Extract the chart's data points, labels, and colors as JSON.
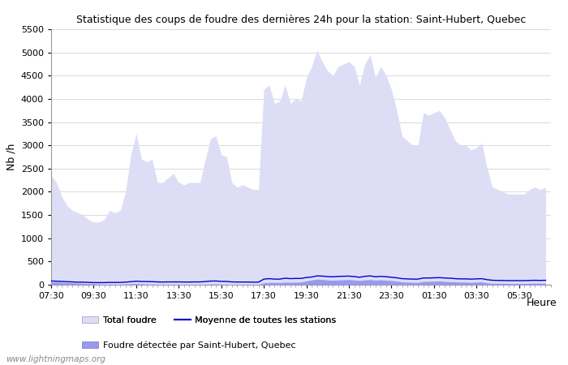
{
  "title": "Statistique des coups de foudre des dernières 24h pour la station: Saint-Hubert, Quebec",
  "ylabel": "Nb /h",
  "xlabel": "Heure",
  "watermark": "www.lightningmaps.org",
  "ylim": [
    0,
    5500
  ],
  "yticks": [
    0,
    500,
    1000,
    1500,
    2000,
    2500,
    3000,
    3500,
    4000,
    4500,
    5000,
    5500
  ],
  "xtick_labels": [
    "07:30",
    "09:30",
    "11:30",
    "13:30",
    "15:30",
    "17:30",
    "19:30",
    "21:30",
    "23:30",
    "01:30",
    "03:30",
    "05:30"
  ],
  "total_foudre_color": "#ddddf5",
  "total_foudre_edge": "#ddddf5",
  "local_foudre_color": "#9999ee",
  "local_foudre_edge": "#9999ee",
  "moyenne_color": "#0000cc",
  "background_color": "#ffffff",
  "grid_color": "#dddddd",
  "legend_labels": [
    "Total foudre",
    "Moyenne de toutes les stations",
    "Foudre détectée par Saint-Hubert, Quebec"
  ],
  "time_points": [
    0,
    0.25,
    0.5,
    0.75,
    1.0,
    1.25,
    1.5,
    1.75,
    2.0,
    2.25,
    2.5,
    2.75,
    3.0,
    3.25,
    3.5,
    3.75,
    4.0,
    4.25,
    4.5,
    4.75,
    5.0,
    5.25,
    5.5,
    5.75,
    6.0,
    6.25,
    6.5,
    6.75,
    7.0,
    7.25,
    7.5,
    7.75,
    8.0,
    8.25,
    8.5,
    8.75,
    9.0,
    9.25,
    9.5,
    9.75,
    10.0,
    10.25,
    10.5,
    10.75,
    11.0,
    11.25,
    11.5,
    11.75,
    12.0,
    12.25,
    12.5,
    12.75,
    13.0,
    13.25,
    13.5,
    13.75,
    14.0,
    14.25,
    14.5,
    14.75,
    15.0,
    15.25,
    15.5,
    15.75,
    16.0,
    16.25,
    16.5,
    16.75,
    17.0,
    17.25,
    17.5,
    17.75,
    18.0,
    18.25,
    18.5,
    18.75,
    19.0,
    19.25,
    19.5,
    19.75,
    20.0,
    20.25,
    20.5,
    20.75,
    21.0,
    21.25,
    21.5,
    21.75,
    22.0,
    22.25,
    22.5,
    22.75,
    23.0,
    23.25
  ],
  "total_foudre_values": [
    2350,
    2200,
    1900,
    1700,
    1600,
    1550,
    1500,
    1400,
    1350,
    1350,
    1400,
    1600,
    1550,
    1600,
    2000,
    2800,
    3250,
    2700,
    2650,
    2700,
    2200,
    2200,
    2300,
    2400,
    2200,
    2150,
    2200,
    2200,
    2200,
    2700,
    3150,
    3200,
    2800,
    2750,
    2200,
    2100,
    2150,
    2100,
    2050,
    2050,
    4200,
    4300,
    3900,
    3950,
    4300,
    3900,
    4000,
    3950,
    4450,
    4700,
    5050,
    4800,
    4600,
    4500,
    4700,
    4750,
    4800,
    4700,
    4300,
    4750,
    4950,
    4450,
    4700,
    4500,
    4200,
    3750,
    3200,
    3100,
    3000,
    3000,
    3700,
    3650,
    3700,
    3750,
    3600,
    3350,
    3100,
    3000,
    3000,
    2900,
    2950,
    3050,
    2500,
    2100,
    2050,
    2000,
    1950,
    1950,
    1950,
    1950,
    2050,
    2100,
    2050,
    2100
  ],
  "local_foudre_values": [
    60,
    55,
    50,
    45,
    40,
    35,
    30,
    25,
    20,
    15,
    10,
    15,
    10,
    12,
    15,
    20,
    25,
    20,
    15,
    12,
    10,
    8,
    8,
    10,
    10,
    8,
    8,
    8,
    10,
    10,
    15,
    15,
    10,
    10,
    8,
    8,
    8,
    8,
    8,
    8,
    40,
    45,
    50,
    45,
    55,
    50,
    55,
    55,
    80,
    100,
    120,
    110,
    100,
    95,
    100,
    105,
    110,
    100,
    90,
    100,
    110,
    95,
    105,
    95,
    90,
    75,
    60,
    55,
    50,
    50,
    70,
    70,
    75,
    80,
    70,
    65,
    60,
    55,
    55,
    50,
    55,
    60,
    40,
    30,
    30,
    28,
    25,
    25,
    25,
    25,
    30,
    32,
    30,
    32
  ],
  "moyenne_values": [
    80,
    75,
    70,
    65,
    60,
    55,
    55,
    50,
    45,
    45,
    45,
    50,
    48,
    50,
    55,
    65,
    75,
    70,
    68,
    65,
    60,
    58,
    60,
    60,
    60,
    58,
    58,
    60,
    60,
    68,
    78,
    80,
    72,
    70,
    60,
    58,
    58,
    58,
    55,
    55,
    120,
    130,
    120,
    120,
    140,
    130,
    135,
    135,
    155,
    165,
    190,
    185,
    175,
    170,
    178,
    182,
    185,
    175,
    160,
    180,
    190,
    170,
    180,
    172,
    160,
    148,
    130,
    125,
    120,
    120,
    145,
    145,
    148,
    152,
    145,
    140,
    130,
    125,
    125,
    120,
    125,
    130,
    108,
    95,
    92,
    90,
    88,
    88,
    88,
    88,
    92,
    95,
    92,
    95
  ],
  "xtick_positions": [
    0,
    2,
    4,
    6,
    8,
    10,
    12,
    14,
    16,
    18,
    20,
    22
  ]
}
